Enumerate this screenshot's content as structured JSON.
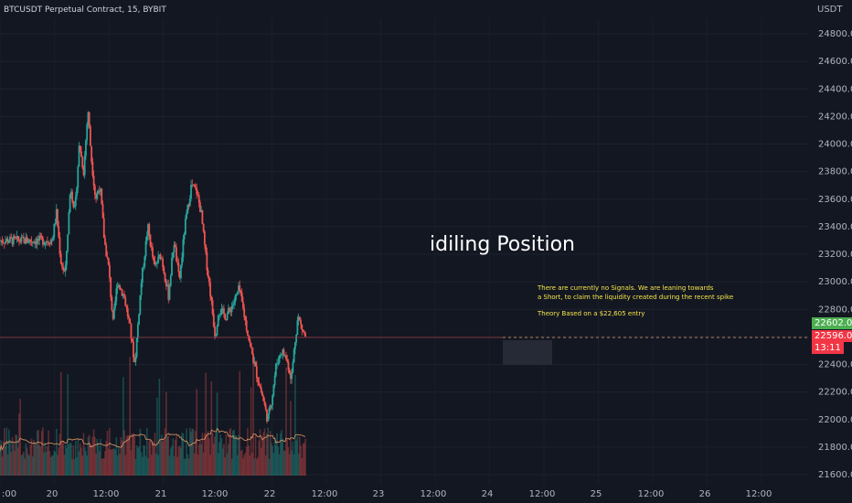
{
  "header": {
    "symbol_line": "BTCUSDT Perpetual Contract, 15, BYBIT",
    "currency": "USDT"
  },
  "overlay": {
    "title": "idiling Position",
    "note_line1": "There are currently no Signals. We are leaning towards",
    "note_line2": "a Short, to claim the liquidity created during the recent spike",
    "note_line3": "Theory Based on a $22,605 entry"
  },
  "price_labels": {
    "last": "22602.0",
    "current": "22596.0",
    "countdown": "13:11"
  },
  "colors": {
    "bull": "#26a69a",
    "bear": "#ef5350",
    "bg": "#131722",
    "note": "#f7e54b",
    "ma": "#e8a06a",
    "green_box": "#4caf50",
    "red_box": "#f23645"
  },
  "chart_data": {
    "type": "candlestick",
    "y_ticks": [
      "24800.0",
      "24600.0",
      "24400.0",
      "24200.0",
      "24000.0",
      "23800.0",
      "23600.0",
      "23400.0",
      "23200.0",
      "23000.0",
      "22800.0",
      "22600.0",
      "22400.0",
      "22200.0",
      "22000.0",
      "21800.0",
      "21600.0"
    ],
    "x_ticks": [
      ":00",
      "20",
      "12:00",
      "21",
      "12:00",
      "22",
      "12:00",
      "23",
      "12:00",
      "24",
      "12:00",
      "25",
      "12:00",
      "26",
      "12:00"
    ],
    "ylim": [
      21550,
      24950
    ],
    "path": [
      [
        0,
        23300
      ],
      [
        0.04,
        23500
      ],
      [
        0.08,
        23150
      ],
      [
        0.12,
        23050
      ],
      [
        0.17,
        23700
      ],
      [
        0.21,
        23500
      ],
      [
        0.25,
        24000
      ],
      [
        0.29,
        23800
      ],
      [
        0.33,
        24250
      ],
      [
        0.36,
        23900
      ],
      [
        0.4,
        23600
      ],
      [
        0.44,
        23700
      ],
      [
        0.48,
        23300
      ],
      [
        0.52,
        23100
      ],
      [
        0.56,
        22700
      ],
      [
        0.6,
        23000
      ],
      [
        0.66,
        22900
      ],
      [
        0.71,
        22700
      ],
      [
        0.76,
        22400
      ],
      [
        0.82,
        23000
      ],
      [
        0.88,
        23400
      ],
      [
        0.94,
        23100
      ],
      [
        1.0,
        23200
      ],
      [
        1.07,
        22900
      ],
      [
        1.12,
        23300
      ],
      [
        1.17,
        23000
      ],
      [
        1.22,
        23400
      ],
      [
        1.28,
        23700
      ],
      [
        1.33,
        23650
      ],
      [
        1.37,
        23500
      ],
      [
        1.41,
        23200
      ],
      [
        1.45,
        22950
      ],
      [
        1.5,
        22600
      ],
      [
        1.53,
        22800
      ],
      [
        1.6,
        22750
      ],
      [
        1.67,
        22850
      ],
      [
        1.72,
        22950
      ],
      [
        1.78,
        22700
      ],
      [
        1.83,
        22500
      ],
      [
        1.89,
        22300
      ],
      [
        1.94,
        22150
      ],
      [
        1.98,
        22000
      ],
      [
        2.02,
        22150
      ],
      [
        2.06,
        22400
      ],
      [
        2.11,
        22500
      ],
      [
        2.15,
        22450
      ],
      [
        2.2,
        22300
      ],
      [
        2.23,
        22550
      ],
      [
        2.26,
        22750
      ],
      [
        2.3,
        22650
      ],
      [
        2.33,
        22600
      ]
    ],
    "volume_ma": [
      150,
      160,
      155,
      150,
      140,
      145,
      150,
      155,
      160,
      148,
      145,
      150,
      155,
      140,
      130,
      135,
      140,
      145,
      150,
      140,
      135,
      130,
      140,
      150,
      145,
      140,
      135,
      130,
      125,
      135,
      140,
      145,
      150,
      155,
      150,
      145,
      140,
      135,
      130,
      125,
      120,
      125,
      130,
      128,
      125,
      122,
      120,
      118,
      120,
      118,
      115
    ]
  }
}
